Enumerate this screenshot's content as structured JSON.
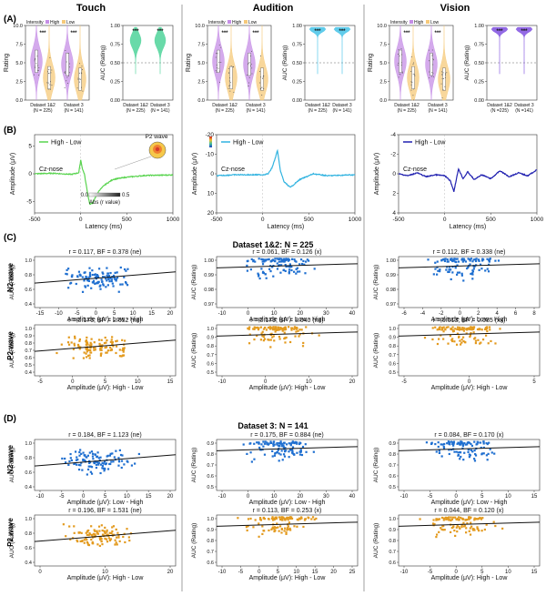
{
  "columns": [
    "Touch",
    "Audition",
    "Vision"
  ],
  "section_labels": [
    "(A)",
    "(B)",
    "(C)",
    "(D)"
  ],
  "colors": {
    "touch_high": "#c58ee6",
    "touch_low": "#f5c97a",
    "audition_high": "#c58ee6",
    "audition_low": "#f5c97a",
    "vision_high": "#c58ee6",
    "vision_low": "#f5c97a",
    "auc_touch": "#4fd39a",
    "auc_audition": "#45c3e8",
    "auc_vision": "#8050e0",
    "erp_touch": "#59d44f",
    "erp_audition": "#31b3e0",
    "erp_vision": "#2020b0",
    "scatter_n2": "#1f6fd0",
    "scatter_p2": "#e39a1e"
  },
  "legend_A": {
    "prefix": "Intensity",
    "high": "High",
    "low": "Low"
  },
  "stars": "***",
  "panelA": {
    "rating_ylabel": "Rating",
    "rating_ticks": [
      "0.0",
      "2.5",
      "5.0",
      "7.5",
      "10.0"
    ],
    "auc_ylabel": "AUC (Rating)",
    "auc_ticks": [
      "0.00",
      "0.25",
      "0.50",
      "0.75",
      "1.00"
    ],
    "x_labels": [
      {
        "name": "Dataset 1&2",
        "n": "(N = 225)"
      },
      {
        "name": "Dataset 3",
        "n": "(N = 141)"
      }
    ],
    "vision_auc_x_labels": [
      {
        "name": "Dataset 1&2",
        "n": "(N =225)"
      },
      {
        "name": "Dataset 3",
        "n": "(N =141)"
      }
    ]
  },
  "panelB": {
    "legend": "High - Low",
    "channel": "Cz-nose",
    "ylabel": "Amplitude (μV)",
    "xlabel": "Latency (ms)",
    "x_ticks": [
      "-500",
      "0",
      "500",
      "1000"
    ],
    "y_ticks_touch": [
      "5",
      "0",
      "-5"
    ],
    "y_ticks_audition": [
      "-20",
      "-10",
      "0",
      "10",
      "20"
    ],
    "y_ticks_vision": [
      "-4",
      "-2",
      "0",
      "2",
      "4"
    ],
    "p2_label": "P2 wave",
    "colorbar": {
      "min": "0.0",
      "max": "0.5",
      "label": "Abs (r value)"
    }
  },
  "panelC_title": "Dataset 1&2: N = 225",
  "panelD_title": "Dataset 3: N = 141",
  "row_labels": {
    "n2": "N2 wave",
    "p2": "P2 wave"
  },
  "scatter_ylabel": "AUC (Rating)",
  "scatter_xlabel_n2": "Amplitude (μV): Low - High",
  "scatter_xlabel_p2": "Amplitude (μV): High - Low",
  "scatter_stats": {
    "C_n2_touch": "r = 0.117, BF = 0.378 (ne)",
    "C_n2_audition": "r = 0.061, BF = 0.126 (x)",
    "C_n2_vision": "r = 0.112, BF = 0.338 (ne)",
    "C_p2_touch": "r = 0.176, BF = 2.652 (ne)",
    "C_p2_audition": "r = 0.179, BF = 3.040 (ne)",
    "C_p2_vision": "r = 0.013, BF = 0.085 (xx)",
    "D_n2_touch": "r = 0.184, BF = 1.123 (ne)",
    "D_n2_audition": "r = 0.175, BF = 0.884 (ne)",
    "D_n2_vision": "r = 0.084, BF = 0.170 (x)",
    "D_p2_touch": "r = 0.196, BF = 1.531 (ne)",
    "D_p2_audition": "r = 0.113, BF = 0.253 (x)",
    "D_p2_vision": "r = 0.044, BF = 0.120 (x)"
  },
  "chart_data": [
    {
      "type": "line",
      "title": "Touch",
      "series": [
        {
          "name": "High - Low"
        }
      ],
      "ylabel": "Amplitude (μV)",
      "xlabel": "Latency (ms)",
      "x": [
        -500,
        -300,
        -100,
        -20,
        0,
        20,
        40,
        60,
        80,
        100,
        130,
        160,
        200,
        260,
        350,
        500,
        700,
        1000
      ],
      "y": [
        0,
        0.1,
        -0.1,
        0.2,
        2.5,
        0.8,
        0,
        -2,
        -4,
        -5.5,
        -5.2,
        -4.2,
        -3,
        -2,
        -1,
        -0.6,
        -0.3,
        -0.2
      ],
      "xlim": [
        -500,
        1000
      ],
      "ylim": [
        7,
        -7
      ]
    },
    {
      "type": "line",
      "title": "Audition",
      "series": [
        {
          "name": "High - Low"
        }
      ],
      "ylabel": "Amplitude (μV)",
      "xlabel": "Latency (ms)",
      "x": [
        -500,
        -300,
        -100,
        0,
        60,
        100,
        130,
        160,
        190,
        230,
        300,
        400,
        550,
        700,
        1000
      ],
      "y": [
        1,
        0.5,
        0.5,
        0.5,
        0,
        -3,
        -7,
        -12,
        -2,
        4,
        7,
        3,
        0,
        1,
        0.5
      ],
      "xlim": [
        -500,
        1000
      ],
      "ylim": [
        -20,
        20
      ]
    },
    {
      "type": "line",
      "title": "Vision",
      "series": [
        {
          "name": "High - Low"
        }
      ],
      "ylabel": "Amplitude (μV)",
      "xlabel": "Latency (ms)",
      "x": [
        -500,
        -400,
        -300,
        -200,
        -100,
        0,
        60,
        100,
        130,
        150,
        200,
        250,
        320,
        400,
        500,
        600,
        700,
        800,
        900,
        1000
      ],
      "y": [
        0,
        0.2,
        -0.1,
        0.3,
        0.1,
        0.2,
        0.7,
        1.8,
        0.4,
        -0.5,
        0.5,
        -0.2,
        0.6,
        0.1,
        0.5,
        -0.3,
        0.3,
        -0.1,
        0.2,
        -0.4
      ],
      "xlim": [
        -500,
        1000
      ],
      "ylim": [
        -4,
        4
      ]
    }
  ]
}
